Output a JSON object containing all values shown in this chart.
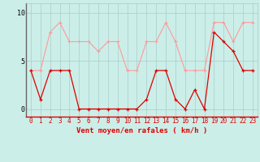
{
  "x": [
    0,
    1,
    2,
    3,
    4,
    5,
    6,
    7,
    8,
    9,
    10,
    11,
    12,
    13,
    14,
    15,
    16,
    17,
    18,
    19,
    20,
    21,
    22,
    23
  ],
  "y_mean": [
    4,
    1,
    4,
    4,
    4,
    0,
    0,
    0,
    0,
    0,
    0,
    0,
    1,
    4,
    4,
    1,
    0,
    2,
    0,
    8,
    7,
    6,
    4,
    4
  ],
  "y_gust": [
    4,
    4,
    8,
    9,
    7,
    7,
    7,
    6,
    7,
    7,
    4,
    4,
    7,
    7,
    9,
    7,
    4,
    4,
    4,
    9,
    9,
    7,
    9,
    9
  ],
  "color_mean": "#dd0000",
  "color_gust": "#ff9999",
  "bg_color": "#cceee8",
  "grid_color": "#aacccc",
  "xlabel": "Vent moyen/en rafales ( km/h )",
  "yticks": [
    0,
    5,
    10
  ],
  "xlim": [
    -0.5,
    23.5
  ],
  "ylim": [
    -0.8,
    11.0
  ],
  "tick_fontsize": 5.5,
  "xlabel_fontsize": 6.5
}
